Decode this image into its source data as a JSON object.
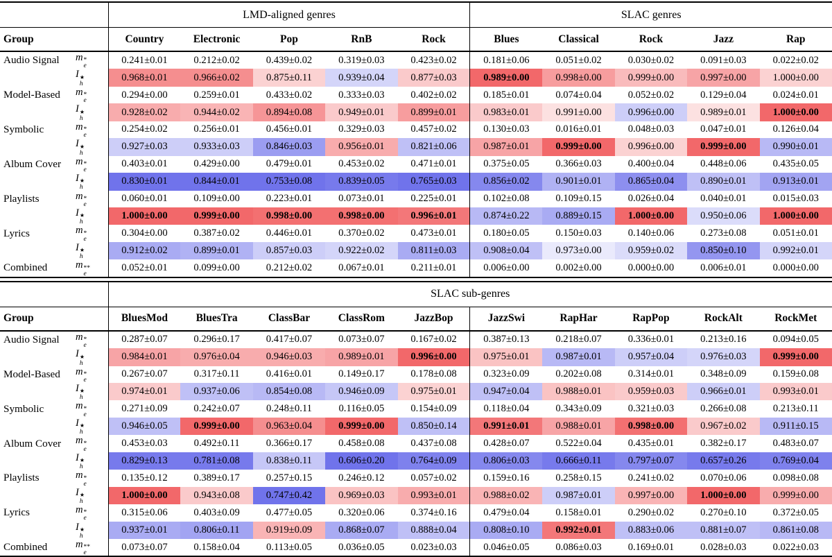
{
  "page": {
    "background": "#ffffff"
  },
  "palette": {
    "max_red": "#f2686a",
    "max_blue": "#7073eb",
    "text": "#000000",
    "rule": "#000000"
  },
  "tables": [
    {
      "name": "genres-table",
      "title_cells": [
        {
          "label": "",
          "span": 2,
          "sep": false
        },
        {
          "label": "LMD-aligned genres",
          "span": 5,
          "sep": true
        },
        {
          "label": "SLAC genres",
          "span": 5,
          "sep": true
        }
      ],
      "group_header": "Group",
      "columns": [
        "Country",
        "Electronic",
        "Pop",
        "RnB",
        "Rock",
        "Blues",
        "Classical",
        "Rock",
        "Jazz",
        "Rap"
      ],
      "separator_cols": [
        0,
        5
      ],
      "rows": [
        {
          "group": "Audio Signal",
          "metric": {
            "base": "m",
            "sup": "*",
            "sub": "e"
          },
          "values": [
            "0.241±0.01",
            "0.212±0.02",
            "0.439±0.02",
            "0.319±0.03",
            "0.423±0.02",
            "0.181±0.06",
            "0.051±0.02",
            "0.030±0.02",
            "0.091±0.03",
            "0.022±0.02"
          ],
          "heats": null,
          "bold": []
        },
        {
          "group": "",
          "metric": {
            "base": "I",
            "sup": "★",
            "sub": "h"
          },
          "values": [
            "0.968±0.01",
            "0.966±0.02",
            "0.875±0.11",
            "0.939±0.04",
            "0.877±0.03",
            "0.989±0.00",
            "0.998±0.00",
            "0.999±0.00",
            "0.997±0.00",
            "1.000±0.00"
          ],
          "heats": [
            0.75,
            0.75,
            0.3,
            -0.3,
            0.35,
            1,
            0.65,
            0.45,
            0.6,
            0.3
          ],
          "bold": [
            5
          ]
        },
        {
          "group": "Model-Based",
          "metric": {
            "base": "m",
            "sup": "*",
            "sub": "e"
          },
          "values": [
            "0.294±0.00",
            "0.259±0.01",
            "0.433±0.02",
            "0.333±0.03",
            "0.402±0.02",
            "0.185±0.01",
            "0.074±0.04",
            "0.052±0.02",
            "0.129±0.04",
            "0.024±0.01"
          ],
          "heats": null,
          "bold": []
        },
        {
          "group": "",
          "metric": {
            "base": "I",
            "sup": "★",
            "sub": "h"
          },
          "values": [
            "0.928±0.02",
            "0.944±0.02",
            "0.894±0.08",
            "0.949±0.01",
            "0.899±0.01",
            "0.983±0.01",
            "0.991±0.00",
            "0.996±0.00",
            "0.989±0.01",
            "1.000±0.00"
          ],
          "heats": [
            0.55,
            0.5,
            0.7,
            0.35,
            0.65,
            0.35,
            0.2,
            -0.35,
            0.2,
            1
          ],
          "bold": [
            9
          ]
        },
        {
          "group": "Symbolic",
          "metric": {
            "base": "m",
            "sup": "*",
            "sub": "e"
          },
          "values": [
            "0.254±0.02",
            "0.256±0.01",
            "0.456±0.01",
            "0.329±0.03",
            "0.457±0.02",
            "0.130±0.03",
            "0.016±0.01",
            "0.048±0.03",
            "0.047±0.01",
            "0.126±0.04"
          ],
          "heats": null,
          "bold": []
        },
        {
          "group": "",
          "metric": {
            "base": "I",
            "sup": "★",
            "sub": "h"
          },
          "values": [
            "0.927±0.03",
            "0.933±0.03",
            "0.846±0.03",
            "0.956±0.01",
            "0.821±0.06",
            "0.987±0.01",
            "0.999±0.00",
            "0.996±0.00",
            "0.999±0.00",
            "0.990±0.01"
          ],
          "heats": [
            -0.35,
            -0.35,
            -0.7,
            0.55,
            -0.45,
            0.6,
            1,
            0.3,
            1,
            -0.5
          ],
          "bold": [
            6,
            8
          ]
        },
        {
          "group": "Album Cover",
          "metric": {
            "base": "m",
            "sup": "*",
            "sub": "e"
          },
          "values": [
            "0.403±0.01",
            "0.429±0.00",
            "0.479±0.01",
            "0.453±0.02",
            "0.471±0.01",
            "0.375±0.05",
            "0.366±0.03",
            "0.400±0.04",
            "0.448±0.06",
            "0.435±0.05"
          ],
          "heats": null,
          "bold": []
        },
        {
          "group": "",
          "metric": {
            "base": "I",
            "sup": "★",
            "sub": "h"
          },
          "values": [
            "0.830±0.01",
            "0.844±0.01",
            "0.753±0.08",
            "0.839±0.05",
            "0.765±0.03",
            "0.856±0.02",
            "0.901±0.01",
            "0.865±0.04",
            "0.890±0.01",
            "0.913±0.01"
          ],
          "heats": [
            -1,
            -1,
            -1,
            -0.95,
            -1,
            -0.85,
            -0.55,
            -0.8,
            -0.45,
            -0.65
          ],
          "bold": []
        },
        {
          "group": "Playlists",
          "metric": {
            "base": "m",
            "sup": "*",
            "sub": "e"
          },
          "values": [
            "0.060±0.01",
            "0.109±0.00",
            "0.223±0.01",
            "0.073±0.01",
            "0.225±0.01",
            "0.102±0.08",
            "0.109±0.15",
            "0.026±0.04",
            "0.040±0.01",
            "0.015±0.03"
          ],
          "heats": null,
          "bold": []
        },
        {
          "group": "",
          "metric": {
            "base": "I",
            "sup": "★",
            "sub": "h"
          },
          "values": [
            "1.000±0.00",
            "0.999±0.00",
            "0.998±0.00",
            "0.998±0.00",
            "0.996±0.01",
            "0.874±0.22",
            "0.889±0.15",
            "1.000±0.00",
            "0.950±0.06",
            "1.000±0.00"
          ],
          "heats": [
            1,
            1,
            0.95,
            0.95,
            0.9,
            -0.5,
            -0.6,
            1,
            -0.25,
            1
          ],
          "bold": [
            0,
            1,
            2,
            3,
            4,
            7,
            9
          ]
        },
        {
          "group": "Lyrics",
          "metric": {
            "base": "m",
            "sup": "*",
            "sub": "e"
          },
          "values": [
            "0.304±0.00",
            "0.387±0.02",
            "0.446±0.01",
            "0.370±0.02",
            "0.473±0.01",
            "0.180±0.05",
            "0.150±0.03",
            "0.140±0.06",
            "0.273±0.08",
            "0.051±0.01"
          ],
          "heats": null,
          "bold": []
        },
        {
          "group": "",
          "metric": {
            "base": "I",
            "sup": "★",
            "sub": "h"
          },
          "values": [
            "0.912±0.02",
            "0.899±0.01",
            "0.857±0.03",
            "0.922±0.02",
            "0.811±0.03",
            "0.908±0.04",
            "0.973±0.00",
            "0.959±0.02",
            "0.850±0.10",
            "0.992±0.01"
          ],
          "heats": [
            -0.6,
            -0.55,
            -0.35,
            -0.3,
            -0.6,
            -0.45,
            -0.15,
            -0.25,
            -0.75,
            -0.3
          ],
          "bold": []
        },
        {
          "group": "Combined",
          "metric": {
            "base": "m",
            "sup": "**",
            "sub": "e"
          },
          "values": [
            "0.052±0.01",
            "0.099±0.00",
            "0.212±0.02",
            "0.067±0.01",
            "0.211±0.01",
            "0.006±0.00",
            "0.002±0.00",
            "0.000±0.00",
            "0.006±0.01",
            "0.000±0.00"
          ],
          "heats": null,
          "bold": []
        }
      ]
    },
    {
      "name": "subgenres-table",
      "title_cells": [
        {
          "label": "",
          "span": 2,
          "sep": false
        },
        {
          "label": "SLAC sub-genres",
          "span": 10,
          "sep": true
        }
      ],
      "group_header": "Group",
      "columns": [
        "BluesMod",
        "BluesTra",
        "ClassBar",
        "ClassRom",
        "JazzBop",
        "JazzSwi",
        "RapHar",
        "RapPop",
        "RockAlt",
        "RockMet"
      ],
      "separator_cols": [
        0,
        5
      ],
      "rows": [
        {
          "group": "Audio Signal",
          "metric": {
            "base": "m",
            "sup": "*",
            "sub": "e"
          },
          "values": [
            "0.287±0.07",
            "0.296±0.17",
            "0.417±0.07",
            "0.073±0.07",
            "0.167±0.02",
            "0.387±0.13",
            "0.218±0.07",
            "0.336±0.01",
            "0.213±0.16",
            "0.094±0.05"
          ],
          "heats": null,
          "bold": []
        },
        {
          "group": "",
          "metric": {
            "base": "I",
            "sup": "★",
            "sub": "h"
          },
          "values": [
            "0.984±0.01",
            "0.976±0.04",
            "0.946±0.03",
            "0.989±0.01",
            "0.996±0.00",
            "0.975±0.01",
            "0.987±0.01",
            "0.957±0.04",
            "0.976±0.03",
            "0.999±0.00"
          ],
          "heats": [
            0.6,
            0.55,
            0.55,
            0.6,
            1,
            0.4,
            -0.5,
            -0.35,
            -0.3,
            1
          ],
          "bold": [
            4,
            9
          ]
        },
        {
          "group": "Model-Based",
          "metric": {
            "base": "m",
            "sup": "*",
            "sub": "e"
          },
          "values": [
            "0.267±0.07",
            "0.317±0.11",
            "0.416±0.01",
            "0.149±0.17",
            "0.178±0.08",
            "0.323±0.09",
            "0.202±0.08",
            "0.314±0.01",
            "0.348±0.09",
            "0.159±0.08"
          ],
          "heats": null,
          "bold": []
        },
        {
          "group": "",
          "metric": {
            "base": "I",
            "sup": "★",
            "sub": "h"
          },
          "values": [
            "0.974±0.01",
            "0.937±0.06",
            "0.854±0.08",
            "0.946±0.09",
            "0.975±0.01",
            "0.947±0.04",
            "0.988±0.01",
            "0.959±0.03",
            "0.966±0.01",
            "0.993±0.01"
          ],
          "heats": [
            0.35,
            -0.45,
            -0.5,
            -0.4,
            0.3,
            -0.45,
            0.4,
            0.35,
            -0.35,
            0.35
          ],
          "bold": []
        },
        {
          "group": "Symbolic",
          "metric": {
            "base": "m",
            "sup": "*",
            "sub": "e"
          },
          "values": [
            "0.271±0.09",
            "0.242±0.07",
            "0.248±0.11",
            "0.116±0.05",
            "0.154±0.09",
            "0.118±0.04",
            "0.343±0.09",
            "0.321±0.03",
            "0.266±0.08",
            "0.213±0.11"
          ],
          "heats": null,
          "bold": []
        },
        {
          "group": "",
          "metric": {
            "base": "I",
            "sup": "★",
            "sub": "h"
          },
          "values": [
            "0.946±0.05",
            "0.999±0.00",
            "0.963±0.04",
            "0.999±0.00",
            "0.850±0.14",
            "0.991±0.01",
            "0.988±0.01",
            "0.998±0.00",
            "0.967±0.02",
            "0.911±0.15"
          ],
          "heats": [
            -0.45,
            1,
            0.75,
            1,
            -0.45,
            0.9,
            0.6,
            0.95,
            0.35,
            -0.5
          ],
          "bold": [
            1,
            3,
            5,
            7
          ]
        },
        {
          "group": "Album Cover",
          "metric": {
            "base": "m",
            "sup": "*",
            "sub": "e"
          },
          "values": [
            "0.453±0.03",
            "0.492±0.11",
            "0.366±0.17",
            "0.458±0.08",
            "0.437±0.08",
            "0.428±0.07",
            "0.522±0.04",
            "0.435±0.01",
            "0.382±0.17",
            "0.483±0.07"
          ],
          "heats": null,
          "bold": []
        },
        {
          "group": "",
          "metric": {
            "base": "I",
            "sup": "★",
            "sub": "h"
          },
          "values": [
            "0.829±0.13",
            "0.781±0.08",
            "0.838±0.11",
            "0.606±0.20",
            "0.764±0.09",
            "0.806±0.03",
            "0.666±0.11",
            "0.797±0.07",
            "0.657±0.26",
            "0.769±0.04"
          ],
          "heats": [
            -0.95,
            -0.95,
            -0.4,
            -1,
            -0.9,
            -0.85,
            -0.95,
            -0.85,
            -0.95,
            -0.9
          ],
          "bold": []
        },
        {
          "group": "Playlists",
          "metric": {
            "base": "m",
            "sup": "*",
            "sub": "e"
          },
          "values": [
            "0.135±0.12",
            "0.389±0.17",
            "0.257±0.15",
            "0.246±0.12",
            "0.057±0.02",
            "0.159±0.16",
            "0.258±0.15",
            "0.241±0.02",
            "0.070±0.06",
            "0.098±0.08"
          ],
          "heats": null,
          "bold": []
        },
        {
          "group": "",
          "metric": {
            "base": "I",
            "sup": "★",
            "sub": "h"
          },
          "values": [
            "1.000±0.00",
            "0.943±0.08",
            "0.747±0.42",
            "0.969±0.03",
            "0.993±0.01",
            "0.988±0.02",
            "0.987±0.01",
            "0.997±0.00",
            "1.000±0.00",
            "0.999±0.00"
          ],
          "heats": [
            1,
            0.35,
            -1,
            0.4,
            0.55,
            0.5,
            -0.35,
            0.5,
            1,
            0.55
          ],
          "bold": [
            0,
            8
          ]
        },
        {
          "group": "Lyrics",
          "metric": {
            "base": "m",
            "sup": "*",
            "sub": "e"
          },
          "values": [
            "0.315±0.06",
            "0.403±0.09",
            "0.477±0.05",
            "0.320±0.06",
            "0.374±0.16",
            "0.479±0.04",
            "0.158±0.01",
            "0.290±0.02",
            "0.270±0.10",
            "0.372±0.05"
          ],
          "heats": null,
          "bold": []
        },
        {
          "group": "",
          "metric": {
            "base": "I",
            "sup": "★",
            "sub": "h"
          },
          "values": [
            "0.937±0.01",
            "0.806±0.11",
            "0.919±0.09",
            "0.868±0.07",
            "0.888±0.04",
            "0.808±0.10",
            "0.992±0.01",
            "0.883±0.06",
            "0.881±0.07",
            "0.861±0.08"
          ],
          "heats": [
            -0.6,
            -0.65,
            0.5,
            -0.6,
            -0.45,
            -0.6,
            0.9,
            -0.45,
            -0.45,
            -0.5
          ],
          "bold": [
            6
          ]
        },
        {
          "group": "Combined",
          "metric": {
            "base": "m",
            "sup": "**",
            "sub": "e"
          },
          "values": [
            "0.073±0.07",
            "0.158±0.04",
            "0.113±0.05",
            "0.036±0.05",
            "0.023±0.03",
            "0.046±0.05",
            "0.086±0.03",
            "0.169±0.01",
            "0.028±0.03",
            "0.022±0.03"
          ],
          "heats": null,
          "bold": []
        }
      ]
    }
  ]
}
